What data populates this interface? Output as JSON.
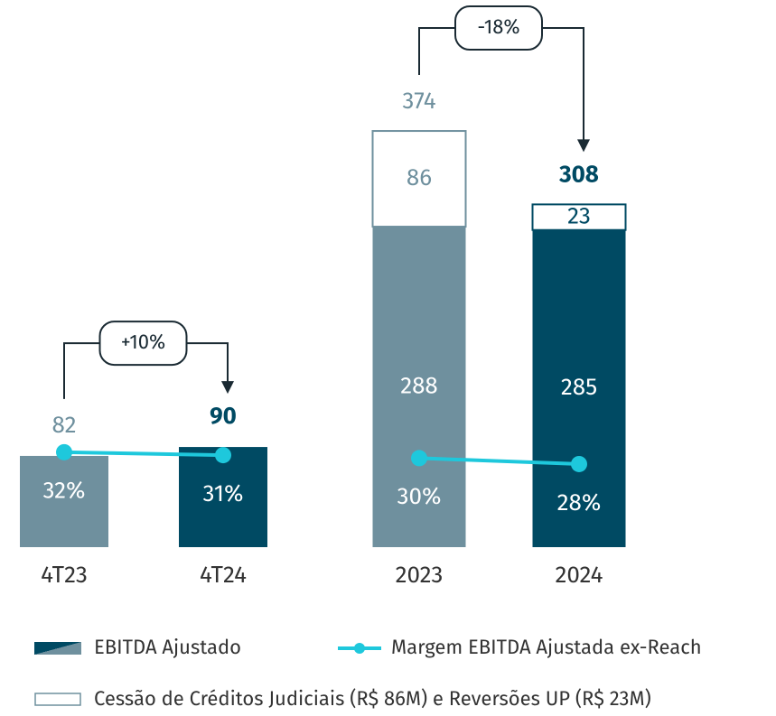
{
  "chart_data": [
    {
      "type": "bar",
      "categories": [
        "4T23",
        "4T24"
      ],
      "series": [
        {
          "colors": [
            "#6f909e",
            "#004a63"
          ],
          "values": [
            82,
            90
          ]
        },
        {
          "type": "line",
          "axis": "y2",
          "color": "#1ec8dc",
          "values": [
            32,
            31
          ],
          "value_labels": [
            "32%",
            "31%"
          ]
        }
      ],
      "bold": [
        false,
        true
      ],
      "annotation": "+10%",
      "ylim": [
        0,
        400
      ],
      "y2lim": [
        0,
        150
      ]
    },
    {
      "type": "bar",
      "categories": [
        "2023",
        "2024"
      ],
      "series": [
        {
          "name": "EBITDA Ajustado",
          "colors": [
            "#6f909e",
            "#004a63"
          ],
          "values": [
            288,
            285
          ]
        },
        {
          "name": "Cessão de Créditos Judiciais (R$ 86M) e Reversões UP (R$ 23M)",
          "color": "#ffffff",
          "values": [
            86,
            23
          ]
        },
        {
          "name": "Margem EBITDA Ajustada ex-Reach",
          "type": "line",
          "axis": "y2",
          "color": "#1ec8dc",
          "values": [
            30,
            28
          ],
          "value_labels": [
            "30%",
            "28%"
          ]
        }
      ],
      "totals": [
        374,
        308
      ],
      "bold": [
        false,
        true
      ],
      "annotation": "-18%",
      "ylim": [
        0,
        400
      ],
      "y2lim": [
        0,
        150
      ]
    }
  ]
}
